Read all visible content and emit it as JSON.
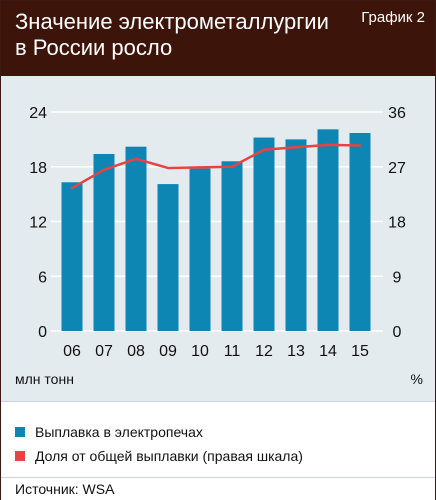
{
  "header": {
    "title_line1": "Значение электрометаллургии",
    "title_line2": "в России росло",
    "tag": "График 2"
  },
  "units": {
    "left": "млн тонн",
    "right": "%"
  },
  "legend": {
    "bars_label": "Выплавка в электропечах",
    "line_label": "Доля от общей выплавки (правая шкала)"
  },
  "source": "Источник: WSA",
  "colors": {
    "bars": "#0e86b4",
    "line": "#e84242",
    "header": "#3d1409",
    "plot_bg": "#e4ebef"
  },
  "chart_data": {
    "type": "bar",
    "categories": [
      "06",
      "07",
      "08",
      "09",
      "10",
      "11",
      "12",
      "13",
      "14",
      "15"
    ],
    "series": [
      {
        "name": "Выплавка в электропечах",
        "type": "bar",
        "axis": "left",
        "values": [
          16.3,
          19.4,
          20.2,
          16.1,
          17.8,
          18.6,
          21.2,
          21.0,
          22.1,
          21.7
        ]
      },
      {
        "name": "Доля от общей выплавки (правая шкала)",
        "type": "line",
        "axis": "right",
        "values": [
          23.5,
          26.5,
          28.3,
          26.8,
          26.9,
          27.0,
          29.8,
          30.2,
          30.6,
          30.5
        ]
      }
    ],
    "y_left": {
      "ticks": [
        "0",
        "6",
        "12",
        "18",
        "24"
      ],
      "lim": [
        0,
        24
      ]
    },
    "y_right": {
      "ticks": [
        "0",
        "9",
        "18",
        "27",
        "36"
      ],
      "lim": [
        0,
        36
      ]
    },
    "grid": true
  }
}
